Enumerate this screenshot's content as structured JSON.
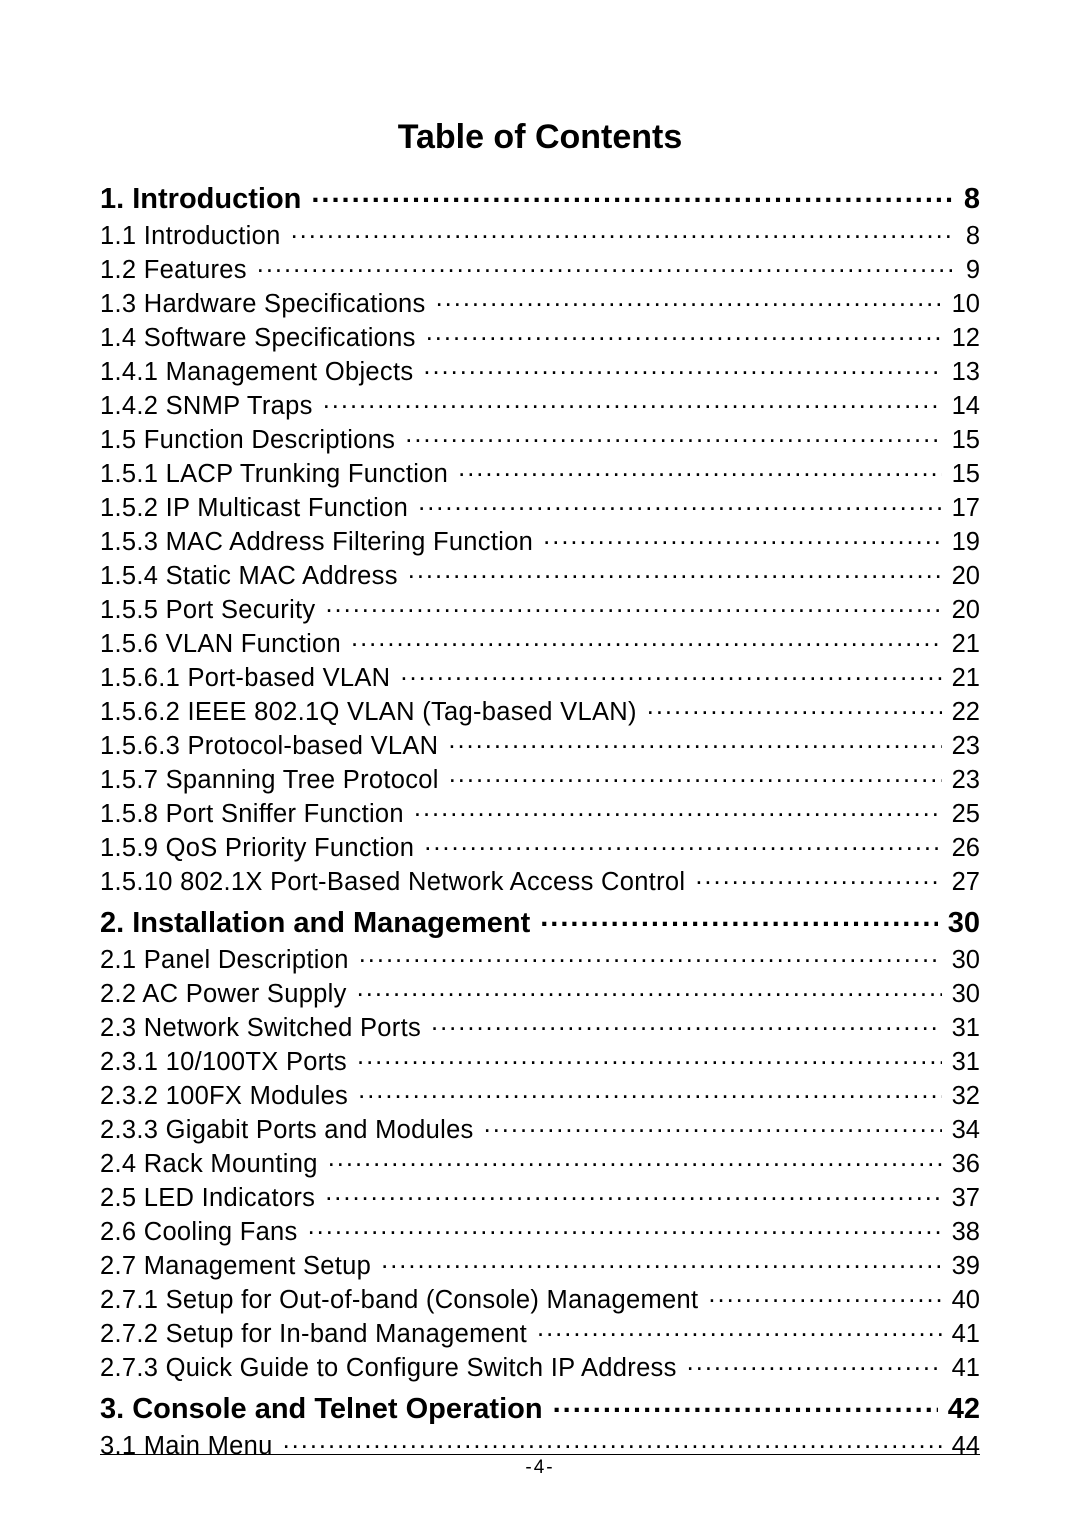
{
  "title": "Table of Contents",
  "page_number_bottom": "-4-",
  "toc": [
    {
      "level": "chapter",
      "label": "1. Introduction",
      "page": "8"
    },
    {
      "level": "entry",
      "label": "1.1 Introduction",
      "page": "8"
    },
    {
      "level": "entry",
      "label": "1.2 Features",
      "page": "9"
    },
    {
      "level": "entry",
      "label": "1.3 Hardware Specifications",
      "page": "10"
    },
    {
      "level": "entry",
      "label": "1.4 Software Specifications",
      "page": "12"
    },
    {
      "level": "entry",
      "label": "1.4.1 Management Objects",
      "page": "13"
    },
    {
      "level": "entry",
      "label": "1.4.2 SNMP Traps",
      "page": "14"
    },
    {
      "level": "entry",
      "label": "1.5 Function Descriptions",
      "page": "15"
    },
    {
      "level": "entry",
      "label": "1.5.1 LACP Trunking Function",
      "page": "15"
    },
    {
      "level": "entry",
      "label": "1.5.2 IP Multicast Function",
      "page": "17"
    },
    {
      "level": "entry",
      "label": "1.5.3 MAC Address Filtering Function",
      "page": "19"
    },
    {
      "level": "entry",
      "label": "1.5.4 Static MAC Address",
      "page": "20"
    },
    {
      "level": "entry",
      "label": "1.5.5 Port Security",
      "page": "20"
    },
    {
      "level": "entry",
      "label": "1.5.6 VLAN Function",
      "page": "21"
    },
    {
      "level": "entry",
      "label": "1.5.6.1 Port-based VLAN",
      "page": "21"
    },
    {
      "level": "entry",
      "label": "1.5.6.2 IEEE 802.1Q VLAN (Tag-based VLAN)",
      "page": "22"
    },
    {
      "level": "entry",
      "label": "1.5.6.3 Protocol-based VLAN",
      "page": "23"
    },
    {
      "level": "entry",
      "label": "1.5.7 Spanning Tree Protocol",
      "page": "23"
    },
    {
      "level": "entry",
      "label": "1.5.8 Port Sniffer Function",
      "page": "25"
    },
    {
      "level": "entry",
      "label": "1.5.9 QoS Priority Function",
      "page": "26"
    },
    {
      "level": "entry",
      "label": "1.5.10 802.1X Port-Based Network Access Control",
      "page": "27"
    },
    {
      "level": "chapter",
      "label": "2. Installation and Management",
      "page": "30"
    },
    {
      "level": "entry",
      "label": "2.1 Panel Description",
      "page": "30"
    },
    {
      "level": "entry",
      "label": "2.2 AC Power Supply",
      "page": "30"
    },
    {
      "level": "entry",
      "label": "2.3 Network Switched Ports",
      "page": "31"
    },
    {
      "level": "entry",
      "label": "2.3.1 10/100TX Ports",
      "page": "31"
    },
    {
      "level": "entry",
      "label": "2.3.2 100FX Modules",
      "page": "32"
    },
    {
      "level": "entry",
      "label": "2.3.3 Gigabit Ports and Modules",
      "page": "34"
    },
    {
      "level": "entry",
      "label": "2.4 Rack Mounting",
      "page": "36"
    },
    {
      "level": "entry",
      "label": "2.5 LED Indicators",
      "page": "37"
    },
    {
      "level": "entry",
      "label": "2.6 Cooling Fans",
      "page": "38"
    },
    {
      "level": "entry",
      "label": "2.7 Management Setup",
      "page": "39"
    },
    {
      "level": "entry",
      "label": "2.7.1 Setup for Out-of-band (Console) Management",
      "page": "40"
    },
    {
      "level": "entry",
      "label": "2.7.2 Setup for In-band Management",
      "page": "41"
    },
    {
      "level": "entry",
      "label": "2.7.3 Quick Guide to Configure Switch IP Address",
      "page": "41"
    },
    {
      "level": "chapter",
      "label": "3. Console and Telnet Operation",
      "page": "42"
    },
    {
      "level": "entry",
      "label": "3.1 Main Menu",
      "page": "44"
    }
  ]
}
